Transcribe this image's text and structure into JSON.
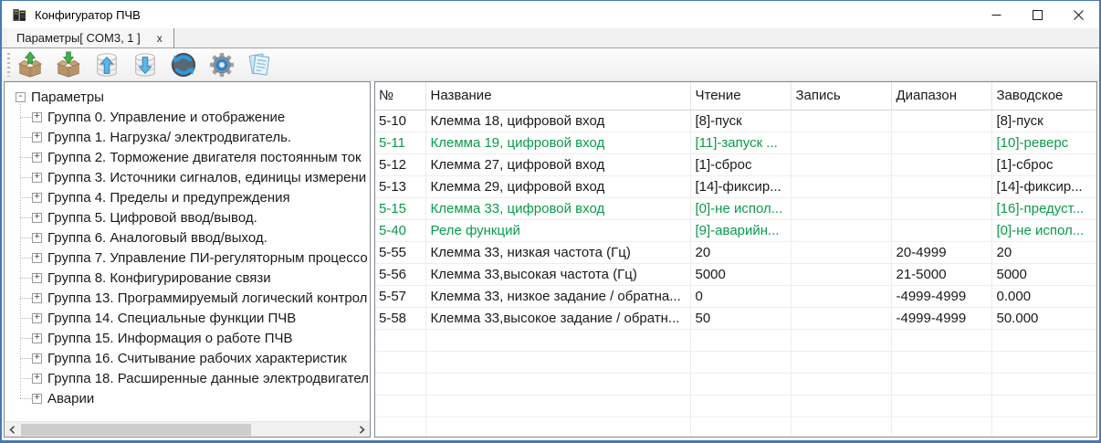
{
  "window": {
    "title": "Конфигуратор ПЧВ",
    "controls": {
      "minimize": "minimize",
      "maximize": "maximize",
      "close": "close"
    }
  },
  "tab": {
    "label": "Параметры[ COM3, 1 ]",
    "close_label": "x"
  },
  "toolbar": {
    "icons": [
      "box-upload-icon",
      "box-download-icon",
      "db-upload-icon",
      "db-download-icon",
      "refresh-icon",
      "settings-gear-icon",
      "report-icon"
    ]
  },
  "tree": {
    "root": "Параметры",
    "items": [
      "Группа 0. Управление и отображение",
      "Группа 1. Нагрузка/ электродвигатель.",
      "Группа 2. Торможение двигателя постоянным ток",
      "Группа 3. Источники сигналов, единицы измерени",
      "Группа 4. Пределы и предупреждения",
      "Группа 5. Цифровой ввод/вывод.",
      "Группа 6. Аналоговый ввод/выход.",
      "Группа 7. Управление ПИ-регуляторным процессо",
      "Группа 8. Конфигурирование связи",
      "Группа 13. Программируемый логический контрол",
      "Группа 14. Специальные функции ПЧВ",
      "Группа 15. Информация о работе ПЧВ",
      "Группа 16. Считывание рабочих характеристик",
      "Группа 18. Расширенные данные электродвигател",
      "Аварии"
    ]
  },
  "table": {
    "columns": [
      "№",
      "Название",
      "Чтение",
      "Запись",
      "Диапазон",
      "Заводское"
    ],
    "rows": [
      {
        "num": "5-10",
        "name": "Клемма 18, цифровой вход",
        "read": "[8]-пуск",
        "write": "",
        "range": "",
        "factory": "[8]-пуск",
        "green": false
      },
      {
        "num": "5-11",
        "name": "Клемма 19, цифровой вход",
        "read": "[11]-запуск ...",
        "write": "",
        "range": "",
        "factory": "[10]-реверс",
        "green": true
      },
      {
        "num": "5-12",
        "name": "Клемма 27, цифровой вход",
        "read": "[1]-сброс",
        "write": "",
        "range": "",
        "factory": "[1]-сброс",
        "green": false
      },
      {
        "num": "5-13",
        "name": "Клемма 29, цифровой вход",
        "read": "[14]-фиксир...",
        "write": "",
        "range": "",
        "factory": "[14]-фиксир...",
        "green": false
      },
      {
        "num": "5-15",
        "name": "Клемма 33, цифровой вход",
        "read": "[0]-не испол...",
        "write": "",
        "range": "",
        "factory": "[16]-предуст...",
        "green": true
      },
      {
        "num": "5-40",
        "name": "Реле функций",
        "read": "[9]-аварийн...",
        "write": "",
        "range": "",
        "factory": "[0]-не испол...",
        "green": true
      },
      {
        "num": "5-55",
        "name": "Клемма 33, низкая частота (Гц)",
        "read": "20",
        "write": "",
        "range": "20-4999",
        "factory": "20",
        "green": false
      },
      {
        "num": "5-56",
        "name": "Клемма 33,высокая частота (Гц)",
        "read": "5000",
        "write": "",
        "range": "21-5000",
        "factory": "5000",
        "green": false
      },
      {
        "num": "5-57",
        "name": "Клемма 33, низкое задание / обратна...",
        "read": "0",
        "write": "",
        "range": "-4999-4999",
        "factory": "0.000",
        "green": false
      },
      {
        "num": "5-58",
        "name": "Клемма 33,высокое задание / обратн...",
        "read": "50",
        "write": "",
        "range": "-4999-4999",
        "factory": "50.000",
        "green": false
      }
    ],
    "empty_rows": 5
  },
  "colors": {
    "accent_border": "#4679b4",
    "green_text": "#0a9b4b"
  }
}
